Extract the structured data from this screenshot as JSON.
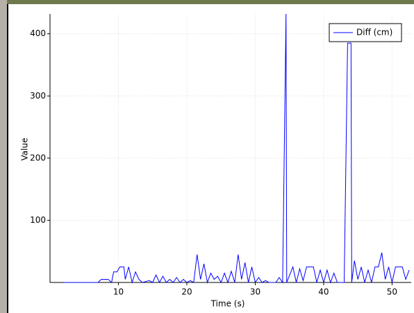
{
  "chart_data": {
    "type": "line",
    "x_label": "Time (s)",
    "y_label": "Value",
    "xlim": [
      0,
      52.8
    ],
    "ylim": [
      0,
      432
    ],
    "xticks": [
      10,
      20,
      30,
      40,
      50
    ],
    "yticks": [
      100,
      200,
      300,
      400
    ],
    "grid": true,
    "legend": "upper right",
    "x": [
      2,
      7,
      7.5,
      8.5,
      9,
      9.3,
      9.8,
      10.2,
      10.8,
      11,
      11.5,
      12,
      12.5,
      13,
      13.5,
      14.5,
      15,
      15.5,
      16,
      16.5,
      17,
      17.5,
      18,
      18.5,
      19,
      19.5,
      20,
      20.5,
      21,
      21.5,
      22,
      22.5,
      23,
      23.5,
      24,
      24.5,
      25,
      25.5,
      26,
      26.5,
      27,
      27.5,
      28,
      28.5,
      29,
      29.5,
      30,
      30.5,
      31,
      31.5,
      32,
      33,
      33.5,
      34,
      34.5,
      34.6,
      35.5,
      36,
      36.5,
      37,
      37.5,
      38.5,
      39,
      39.5,
      40,
      40.5,
      41,
      41.5,
      42,
      43,
      43.5,
      44,
      44.1,
      44.5,
      45,
      45.5,
      46,
      46.5,
      47,
      47.5,
      48,
      48.5,
      49,
      49.5,
      50,
      50.5,
      51.5,
      52,
      52.5
    ],
    "series": [
      {
        "name": "Diff (cm)",
        "color": "#0000ff",
        "values": [
          0,
          0,
          5,
          5,
          0,
          17,
          17,
          25,
          25,
          5,
          25,
          0,
          17,
          5,
          0,
          3,
          0,
          12,
          0,
          10,
          0,
          5,
          0,
          8,
          0,
          5,
          0,
          3,
          0,
          45,
          5,
          30,
          0,
          15,
          5,
          10,
          0,
          15,
          0,
          18,
          0,
          45,
          5,
          32,
          0,
          25,
          0,
          8,
          0,
          3,
          0,
          0,
          8,
          0,
          432,
          0,
          25,
          0,
          22,
          3,
          25,
          25,
          0,
          20,
          0,
          20,
          0,
          15,
          0,
          0,
          385,
          385,
          0,
          35,
          5,
          25,
          0,
          20,
          0,
          25,
          25,
          48,
          5,
          25,
          0,
          25,
          25,
          5,
          20
        ]
      }
    ]
  }
}
